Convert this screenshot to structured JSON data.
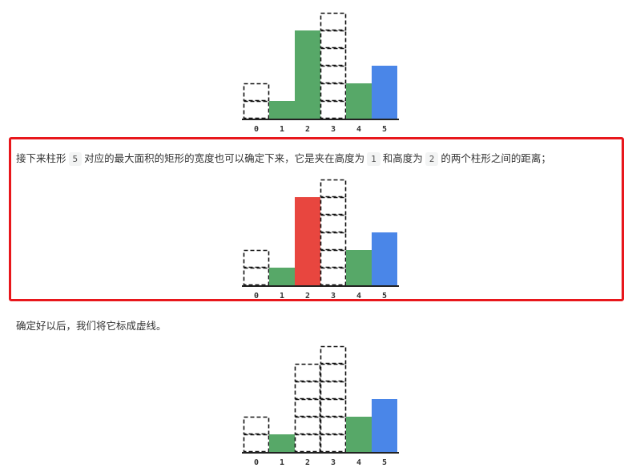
{
  "colors": {
    "green": "#57a868",
    "red": "#e8463f",
    "blue": "#4a86e8",
    "frame": "#e8171c"
  },
  "paragraph_1": {
    "part_a": "接下来柱形",
    "code_a": "5",
    "part_b": "对应的最大面积的矩形的宽度也可以确定下来，它是夹在高度为",
    "code_b": "1",
    "part_c": "和高度为",
    "code_c": "2",
    "part_d": "的两个柱形之间的距离；"
  },
  "paragraph_2": {
    "text": "确定好以后，我们将它标成虚线。"
  },
  "chart_data": [
    {
      "type": "bar",
      "categories": [
        "0",
        "1",
        "2",
        "3",
        "4",
        "5"
      ],
      "values": [
        2,
        1,
        5,
        6,
        2,
        3
      ],
      "bar_styles": [
        "dashed",
        "green",
        "green",
        "dashed",
        "green",
        "blue"
      ]
    },
    {
      "type": "bar",
      "categories": [
        "0",
        "1",
        "2",
        "3",
        "4",
        "5"
      ],
      "values": [
        2,
        1,
        5,
        6,
        2,
        3
      ],
      "bar_styles": [
        "dashed",
        "green",
        "red",
        "dashed",
        "green",
        "blue"
      ]
    },
    {
      "type": "bar",
      "categories": [
        "0",
        "1",
        "2",
        "3",
        "4",
        "5"
      ],
      "values": [
        2,
        1,
        5,
        6,
        2,
        3
      ],
      "bar_styles": [
        "dashed",
        "green",
        "dashed",
        "dashed",
        "green",
        "blue"
      ]
    }
  ]
}
